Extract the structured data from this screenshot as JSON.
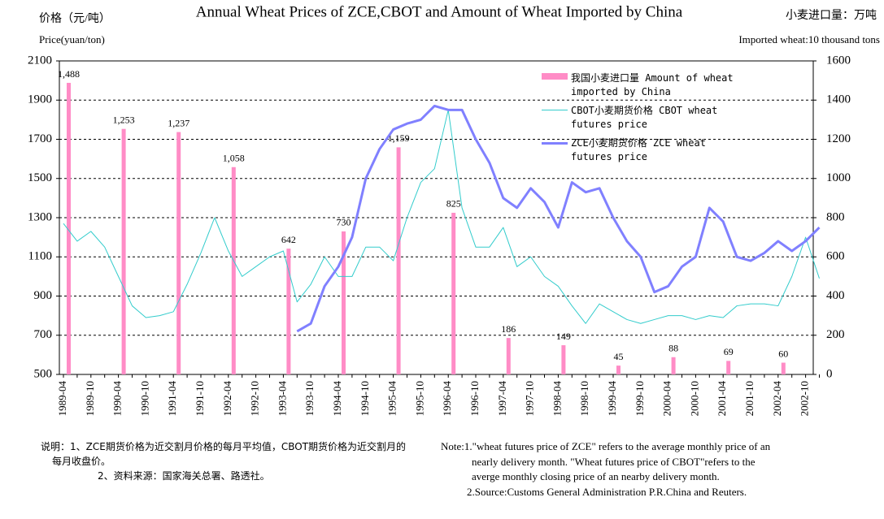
{
  "chart_data": {
    "type": "bar_line",
    "title": "Annual Wheat Prices of ZCE,CBOT and Amount of Wheat Imported by China",
    "y_label_cn": "价格（元/吨）",
    "y_label": "Price(yuan/ton)",
    "y2_label_cn": "小麦进口量：万吨",
    "y2_label": "Imported wheat:10 thousand tons",
    "categories": [
      "1989-04",
      null,
      "1989-10",
      null,
      "1990-04",
      null,
      "1990-10",
      null,
      "1991-04",
      null,
      "1991-10",
      null,
      "1992-04",
      null,
      "1992-10",
      null,
      "1993-04",
      null,
      "1993-10",
      null,
      "1994-04",
      null,
      "1994-10",
      null,
      "1995-04",
      null,
      "1995-10",
      null,
      "1996-04",
      null,
      "1996-10",
      null,
      "1997-04",
      null,
      "1997-10",
      null,
      "1998-04",
      null,
      "1998-10",
      null,
      "1999-04",
      null,
      "1999-10",
      null,
      "2000-04",
      null,
      "2000-10",
      null,
      "2001-04",
      null,
      "2001-10",
      null,
      "2002-04",
      null,
      "2002-10",
      null
    ],
    "series": [
      {
        "name": "我国小麦进口量 Amount of wheat imported by China",
        "type": "bar",
        "axis": "y2",
        "color": "#ff8cc6",
        "values": [
          1488,
          null,
          null,
          null,
          1253,
          null,
          null,
          null,
          1237,
          null,
          null,
          null,
          1058,
          null,
          null,
          null,
          642,
          null,
          null,
          null,
          730,
          null,
          null,
          null,
          1159,
          null,
          null,
          null,
          825,
          null,
          null,
          null,
          186,
          null,
          null,
          null,
          149,
          null,
          null,
          null,
          45,
          null,
          null,
          null,
          88,
          null,
          null,
          null,
          69,
          null,
          null,
          null,
          60,
          null,
          null,
          null
        ],
        "value_labels": [
          "1,488",
          null,
          null,
          null,
          "1,253",
          null,
          null,
          null,
          "1,237",
          null,
          null,
          null,
          "1,058",
          null,
          null,
          null,
          "642",
          null,
          null,
          null,
          "730",
          null,
          null,
          null,
          "1,159",
          null,
          null,
          null,
          "825",
          null,
          null,
          null,
          "186",
          null,
          null,
          null,
          "149",
          null,
          null,
          null,
          "45",
          null,
          null,
          null,
          "88",
          null,
          null,
          null,
          "69",
          null,
          null,
          null,
          "60",
          null,
          null,
          null
        ]
      },
      {
        "name": "CBOT小麦期货价格 CBOT wheat futures price",
        "type": "line",
        "color": "#33cccc",
        "width": 1,
        "values": [
          1270,
          1180,
          1230,
          1150,
          1000,
          850,
          790,
          800,
          820,
          960,
          1120,
          1300,
          1130,
          1000,
          1050,
          1100,
          1130,
          870,
          960,
          1100,
          1000,
          1000,
          1150,
          1150,
          1080,
          1300,
          1480,
          1550,
          1850,
          1350,
          1150,
          1150,
          1250,
          1050,
          1100,
          1000,
          950,
          850,
          760,
          860,
          820,
          780,
          760,
          780,
          800,
          800,
          780,
          800,
          790,
          850,
          860,
          860,
          850,
          1000,
          1200,
          990
        ]
      },
      {
        "name": "ZCE小麦期货价格 ZCE wheat futures price",
        "type": "line",
        "color": "#8080ff",
        "width": 3,
        "values": [
          null,
          null,
          null,
          null,
          null,
          null,
          null,
          null,
          null,
          null,
          null,
          null,
          null,
          null,
          null,
          null,
          null,
          720,
          760,
          950,
          1050,
          1200,
          1500,
          1650,
          1750,
          1780,
          1800,
          1870,
          1850,
          1850,
          1700,
          1580,
          1400,
          1350,
          1450,
          1380,
          1250,
          1480,
          1430,
          1450,
          1300,
          1180,
          1100,
          920,
          950,
          1050,
          1100,
          1350,
          1280,
          1100,
          1080,
          1120,
          1180,
          1130,
          1180,
          1250
        ]
      }
    ],
    "ylim": [
      500,
      2100
    ],
    "yticks": [
      500,
      700,
      900,
      1100,
      1300,
      1500,
      1700,
      1900,
      2100
    ],
    "y2lim": [
      0,
      1600
    ],
    "y2ticks": [
      0,
      200,
      400,
      600,
      800,
      1000,
      1200,
      1400,
      1600
    ],
    "grid": true,
    "notes_cn": [
      "说明：1、ZCE期货价格为近交割月价格的每月平均值，CBOT期货价格为近交割月的每月收盘价。",
      "2、资料来源：国家海关总署、路透社。"
    ],
    "notes_en": [
      "Note:1.\"wheat futures price of ZCE\" refers to the average monthly price of an nearly delivery month. \"Wheat futures price of CBOT\"refers to the averge monthly closing price of an nearby delivery month.",
      "2.Source:Customs General Administration P.R.China and Reuters."
    ]
  }
}
